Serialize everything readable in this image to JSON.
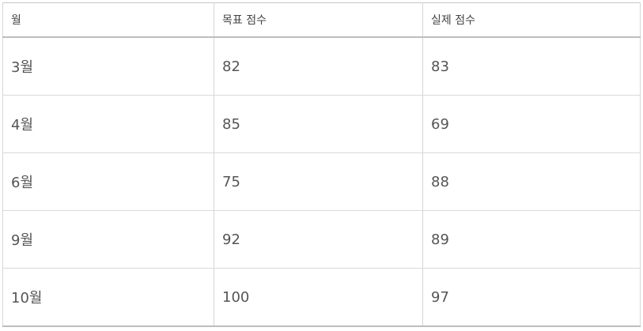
{
  "table": {
    "headers": [
      "월",
      "목표 점수",
      "실제 점수"
    ],
    "rows": [
      [
        "3월",
        "82",
        "83"
      ],
      [
        "4월",
        "85",
        "69"
      ],
      [
        "6월",
        "75",
        "88"
      ],
      [
        "9월",
        "92",
        "89"
      ],
      [
        "10월",
        "100",
        "97"
      ]
    ]
  },
  "colors": {
    "border": "#d6d6d6",
    "header_rule": "#bdbdbd",
    "text": "#555555"
  }
}
